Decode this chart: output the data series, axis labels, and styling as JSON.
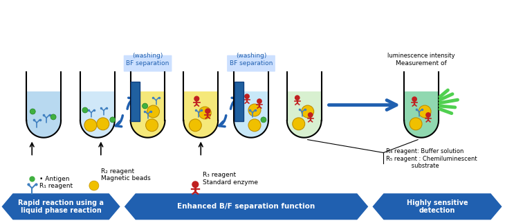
{
  "bg_color": "#ffffff",
  "tube_liquid_colors": [
    "#b8d9f0",
    "#d0e8f8",
    "#f5e87a",
    "#c8e8f8",
    "#d8f0d0",
    "#90d8b0"
  ],
  "arrow_color": "#2060b0",
  "banner_color": "#2060b0",
  "banner_texts": [
    "Rapid reaction using a\nliquid phase reaction",
    "Enhanced B/F separation function",
    "Highly sensitive\ndetection"
  ],
  "yellow_gold": "#f0c000",
  "green_dot": "#40b040",
  "red_mol": "#c02020",
  "blue_ab": "#4080c0",
  "glow_color": "#50d050"
}
